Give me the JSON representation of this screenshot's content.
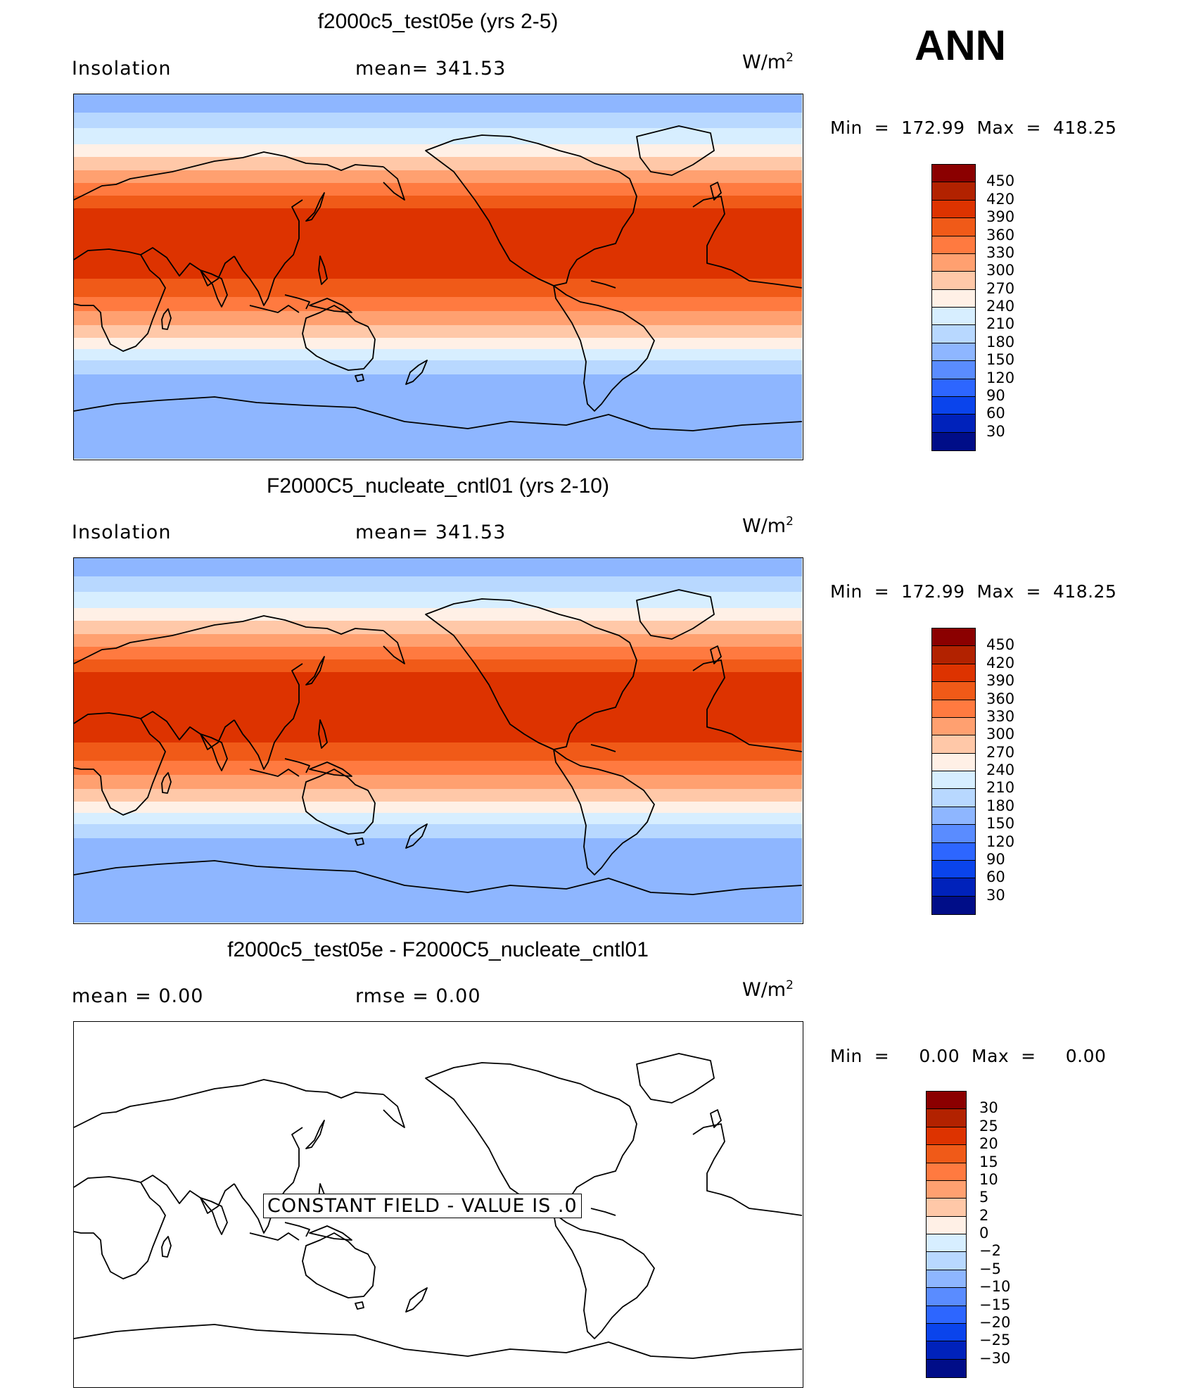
{
  "season": "ANN",
  "panels": [
    {
      "title": "f2000c5_test05e (yrs 2-5)",
      "left_label": "Insolation",
      "center_label": "mean= 341.53",
      "units_base": "W/m",
      "units_exp": "2",
      "minmax": "Min  =  172.99  Max  =  418.25",
      "colorbar_ticks": [
        "450",
        "420",
        "390",
        "360",
        "330",
        "300",
        "270",
        "240",
        "210",
        "180",
        "150",
        "120",
        "90",
        "60",
        "30"
      ]
    },
    {
      "title": "F2000C5_nucleate_cntl01 (yrs 2-10)",
      "left_label": "Insolation",
      "center_label": "mean= 341.53",
      "units_base": "W/m",
      "units_exp": "2",
      "minmax": "Min  =  172.99  Max  =  418.25",
      "colorbar_ticks": [
        "450",
        "420",
        "390",
        "360",
        "330",
        "300",
        "270",
        "240",
        "210",
        "180",
        "150",
        "120",
        "90",
        "60",
        "30"
      ]
    },
    {
      "title": "f2000c5_test05e - F2000C5_nucleate_cntl01",
      "left_label": "mean =     0.00",
      "center_label": "rmse =     0.00",
      "units_base": "W/m",
      "units_exp": "2",
      "minmax": "Min  =     0.00  Max  =     0.00",
      "constant_note": "CONSTANT FIELD - VALUE IS .0",
      "colorbar_ticks": [
        "30",
        "25",
        "20",
        "15",
        "10",
        "5",
        "2",
        "0",
        "−2",
        "−5",
        "−10",
        "−15",
        "−20",
        "−25",
        "−30"
      ]
    }
  ],
  "colors": {
    "cb_top_16": [
      "#8b0000",
      "#b22200",
      "#dd3300",
      "#f05a18",
      "#ff7a40",
      "#ffa070",
      "#ffc8a8",
      "#fff0e6",
      "#d7eeff",
      "#b8d8ff",
      "#8eb6ff",
      "#5a8cff",
      "#2d66ff",
      "#0a44ec",
      "#0022bb",
      "#000d88"
    ],
    "cb_diff_16": [
      "#8b0000",
      "#b22200",
      "#dd3300",
      "#f05a18",
      "#ff7a40",
      "#ffa070",
      "#ffc8a8",
      "#fff0e6",
      "#d7eeff",
      "#b8d8ff",
      "#8eb6ff",
      "#5a8cff",
      "#2d66ff",
      "#0a44ec",
      "#0022bb",
      "#000d88"
    ],
    "bands": [
      "#8eb6ff",
      "#b8d8ff",
      "#d7eeff",
      "#fff0e6",
      "#ffc8a8",
      "#ffa070",
      "#ff7a40",
      "#f05a18",
      "#dd3300",
      "#f05a18",
      "#ff7a40",
      "#ffa070",
      "#ffc8a8",
      "#fff0e6",
      "#d7eeff",
      "#b8d8ff",
      "#8eb6ff"
    ]
  }
}
